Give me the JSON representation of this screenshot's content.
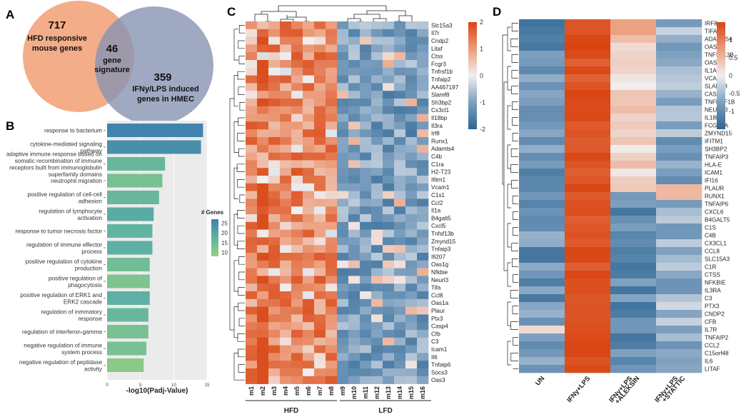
{
  "panel_labels": [
    "A",
    "B",
    "C",
    "D"
  ],
  "chart_data": [
    {
      "type": "venn",
      "sets": [
        {
          "count": "717",
          "label_lines": [
            "HFD responsive",
            "mouse genes"
          ],
          "color": "#f2a67e"
        },
        {
          "count": "359",
          "label_lines": [
            "IFNy/LPS induced",
            "genes in HMEC"
          ],
          "color": "#8893b3"
        }
      ],
      "intersection": {
        "count": "46",
        "label_lines": [
          "gene",
          "signature"
        ]
      }
    },
    {
      "type": "bar",
      "orientation": "horizontal",
      "categories": [
        [
          "response to bacterium"
        ],
        [
          "cytokine-mediated signaling",
          "pathway"
        ],
        [
          "adaptive immune response based on",
          "somatic recombination of immune",
          "receptors built from immunoglobulin",
          "superfamily domains"
        ],
        [
          "neutrophil migration"
        ],
        [
          "positive regulation of cell-cell",
          "adhesion"
        ],
        [
          "regulation of lymphocyte",
          "activation"
        ],
        [
          "response to tumor necrosis factor"
        ],
        [
          "regulation of immune effector",
          "process"
        ],
        [
          "positive regulation of cytokine",
          "production"
        ],
        [
          "positive regulation of",
          "phagocytosis"
        ],
        [
          "positive regulation of ERK1 and",
          "ERK2 cascade"
        ],
        [
          "regulation of inmmatory",
          "response"
        ],
        [
          "regulation of interferon-gamma"
        ],
        [
          "negative regulation of immune",
          "system process"
        ],
        [
          "negative regulation of peptidase",
          "activity"
        ]
      ],
      "values": [
        14.4,
        14.1,
        8.7,
        8.3,
        7.8,
        7.0,
        6.8,
        6.8,
        6.4,
        6.4,
        6.4,
        6.2,
        6.2,
        5.9,
        5.5
      ],
      "genes": [
        26,
        24,
        16,
        13,
        16,
        19,
        17,
        18,
        14,
        12,
        18,
        16,
        13,
        13,
        10
      ],
      "xlabel": "-log10(Padj-Value)",
      "xlim": [
        0,
        15
      ],
      "xticks": [
        "0",
        "5",
        "10",
        "15"
      ],
      "legend": {
        "title": "# Genes",
        "ticks": [
          "25",
          "20",
          "15",
          "10"
        ],
        "range": [
          8,
          27
        ],
        "colors": [
          "#96cf81",
          "#5fb3a2",
          "#3e7fb0"
        ]
      }
    },
    {
      "type": "heatmap",
      "rows": [
        "Slc15a3",
        "Il7r",
        "Cndp2",
        "Litaf",
        "Ctss",
        "Fcgr3",
        "Tnfrsf1b",
        "Tnfaip2",
        "AA467197",
        "Slamf8",
        "Sh3bp2",
        "Cx3cl1",
        "Il18bp",
        "Il3ra",
        "Irf8",
        "Runx1",
        "Adamts4",
        "C4b",
        "C1ra",
        "H2-T23",
        "Ifitm1",
        "Vcam1",
        "C1s1",
        "Ccl2",
        "Il1a",
        "B4galt5",
        "Cxcl5",
        "Tnfsf13b",
        "Zmynd15",
        "Tnfaip3",
        "Ifi207",
        "Oas1g",
        "Nfkbie",
        "Neurl3",
        "Tifa",
        "Ccl8",
        "Oas1a",
        "Plaur",
        "Ptx3",
        "Casp4",
        "Cfb",
        "C3",
        "Icam1",
        "Il6",
        "Tnfaip6",
        "Socs3",
        "Oas3"
      ],
      "columns": [
        "m1",
        "m2",
        "m3",
        "m4",
        "m5",
        "m6",
        "m7",
        "m8",
        "m9",
        "m10",
        "m11",
        "m12",
        "m13",
        "m14",
        "m15",
        "m16"
      ],
      "groups": [
        {
          "label": "HFD",
          "columns": 8
        },
        {
          "label": "LFD",
          "columns": 8
        }
      ],
      "scale": {
        "min": -2,
        "max": 2,
        "ticks": [
          "2",
          "1",
          "0",
          "-1",
          "-2"
        ]
      },
      "value_model": "HFD columns elevated (about +0.6 to +1.8), LFD columns reduced (about -0.4 to -1.6)"
    },
    {
      "type": "heatmap",
      "rows": [
        "IRF8",
        "TIFA",
        "ADAMTS4",
        "OAS3",
        "TNFSF13B",
        "OAS1",
        "IL1A",
        "VCAM1",
        "SLAMF8",
        "CASP4",
        "TNFRSF1B",
        "NEURL3",
        "IL18BP",
        "FCGR2A",
        "ZMYND15",
        "IFITM1",
        "SH3BP2",
        "TNFAIP3",
        "HLA-E",
        "ICAM1",
        "IFI16",
        "PLAUR",
        "RUNX1",
        "TNFAIP6",
        "CXCL6",
        "B4GALT5",
        "C1S",
        "C4B",
        "CX3CL1",
        "CCL8",
        "SLC15A3",
        "C1R",
        "CTSS",
        "NFKBIE",
        "IL3RA",
        "C3",
        "PTX3",
        "CNDP2",
        "CFB",
        "IL7R",
        "TNFAIP2",
        "CCL2",
        "C15orf48",
        "IL6",
        "LITAF"
      ],
      "columns": [
        "UN",
        "IFNy+LPS",
        "IFNy+LPS +ALEKSIN",
        "IFNy+LPS +STATTIC"
      ],
      "scale": {
        "min": -1.5,
        "max": 1.5,
        "ticks": [
          "1",
          "0.5",
          "0",
          "-0.5",
          "-1"
        ]
      },
      "value_model": "IFNy+LPS strongly induced (about +1.2 to +1.5); others low, first cluster partially rescued"
    }
  ]
}
